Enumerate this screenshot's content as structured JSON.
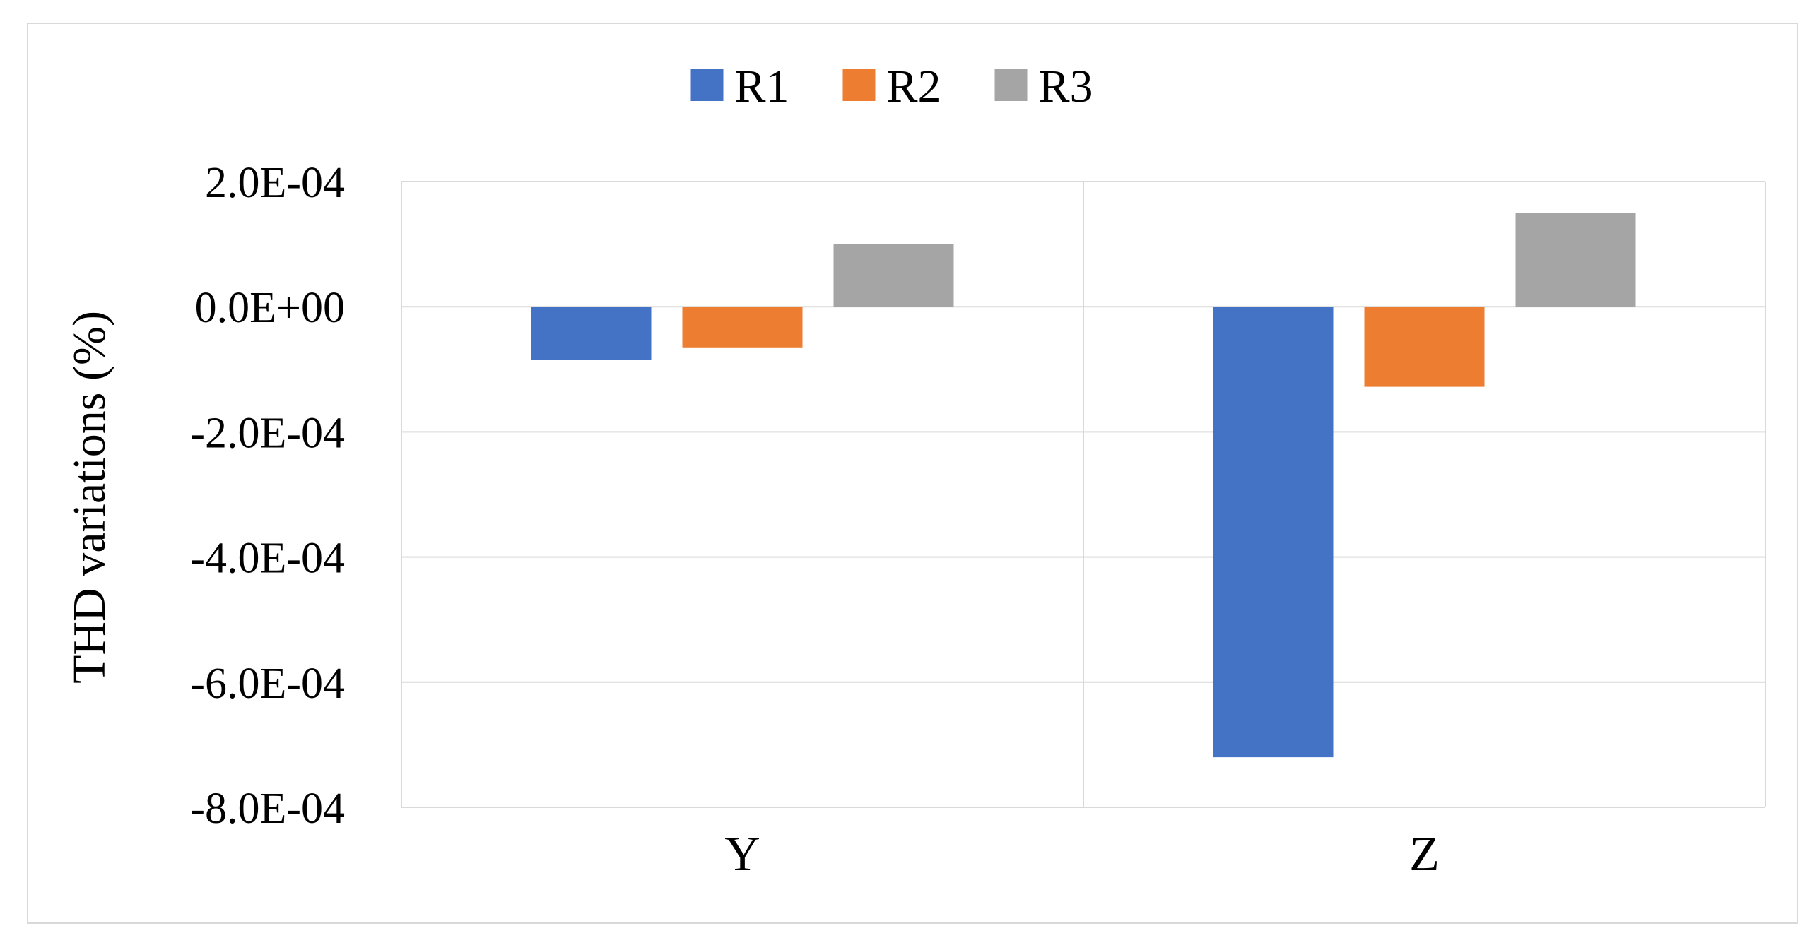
{
  "chart_data": {
    "type": "bar",
    "title": "",
    "xlabel": "",
    "ylabel": "THD variations (%)",
    "categories": [
      "Y",
      "Z"
    ],
    "series": [
      {
        "name": "R1",
        "color": "#4472C4",
        "values": [
          -8.5e-05,
          -0.00072
        ]
      },
      {
        "name": "R2",
        "color": "#ED7D31",
        "values": [
          -6.5e-05,
          -0.000128
        ]
      },
      {
        "name": "R3",
        "color": "#A5A5A5",
        "values": [
          0.0001,
          0.00015
        ]
      }
    ],
    "ylim": [
      -0.0008,
      0.0002
    ],
    "yticks": [
      0.0002,
      0.0,
      -0.0002,
      -0.0004,
      -0.0006,
      -0.0008
    ],
    "ytick_labels": [
      "2.0E-04",
      "0.0E+00",
      "-2.0E-04",
      "-4.0E-04",
      "-6.0E-04",
      "-8.0E-04"
    ],
    "grid": true,
    "legend_position": "top-center",
    "colors": {
      "gridline": "#d9d9d9",
      "frame": "#d9d9d9"
    }
  }
}
